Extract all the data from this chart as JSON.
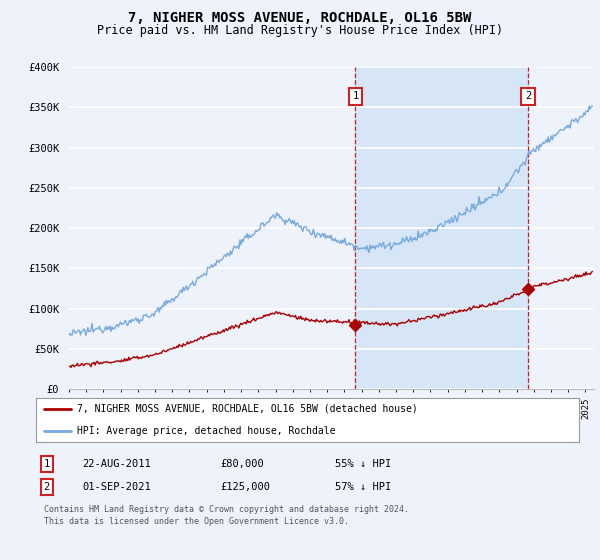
{
  "title": "7, NIGHER MOSS AVENUE, ROCHDALE, OL16 5BW",
  "subtitle": "Price paid vs. HM Land Registry's House Price Index (HPI)",
  "title_fontsize": 10,
  "subtitle_fontsize": 8.5,
  "ylim": [
    0,
    400000
  ],
  "xlim_start": 1995.0,
  "xlim_end": 2025.5,
  "yticks": [
    0,
    50000,
    100000,
    150000,
    200000,
    250000,
    300000,
    350000,
    400000
  ],
  "ytick_labels": [
    "£0",
    "£50K",
    "£100K",
    "£150K",
    "£200K",
    "£250K",
    "£300K",
    "£350K",
    "£400K"
  ],
  "background_color": "#eef2fb",
  "plot_bg_color": "#eef2fb",
  "grid_color": "#ffffff",
  "sale1_date": "22-AUG-2011",
  "sale1_price": 80000,
  "sale1_label": "55% ↓ HPI",
  "sale1_year": 2011.64,
  "sale2_date": "01-SEP-2021",
  "sale2_price": 125000,
  "sale2_label": "57% ↓ HPI",
  "sale2_year": 2021.67,
  "legend_line1": "7, NIGHER MOSS AVENUE, ROCHDALE, OL16 5BW (detached house)",
  "legend_line2": "HPI: Average price, detached house, Rochdale",
  "footnote": "Contains HM Land Registry data © Crown copyright and database right 2024.\nThis data is licensed under the Open Government Licence v3.0.",
  "hpi_color": "#7aaadd",
  "price_color": "#aa0000",
  "sale_marker_color": "#aa0000",
  "dashed_line_color": "#cc2222",
  "shade_color": "#d0e4f7",
  "shade_alpha": 0.5
}
